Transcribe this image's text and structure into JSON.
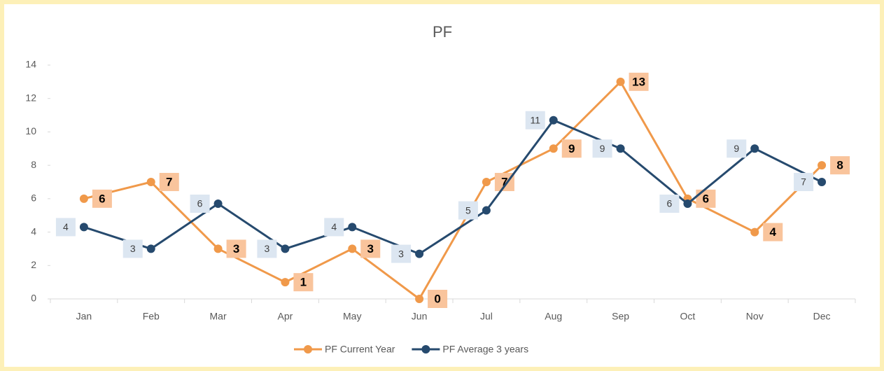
{
  "chart_data": {
    "type": "line",
    "title": "PF",
    "categories": [
      "Jan",
      "Feb",
      "Mar",
      "Apr",
      "May",
      "Jun",
      "Jul",
      "Aug",
      "Sep",
      "Oct",
      "Nov",
      "Dec"
    ],
    "series": [
      {
        "name": "PF Current Year",
        "color": "#f0994a",
        "values": [
          6,
          7,
          3,
          1,
          3,
          0,
          7,
          9,
          13,
          6,
          4,
          8
        ]
      },
      {
        "name": "PF Average 3 years",
        "color": "#264a6e",
        "values": [
          4.3,
          3,
          5.7,
          3,
          4.3,
          2.7,
          5.3,
          10.7,
          9,
          5.7,
          9,
          7
        ],
        "value_labels": [
          "4",
          "3",
          "6",
          "3",
          "4",
          "3",
          "5",
          "11",
          "9",
          "6",
          "9",
          "7"
        ]
      }
    ],
    "ylim": [
      0,
      14
    ],
    "yticks": [
      0,
      2,
      4,
      6,
      8,
      10,
      12,
      14
    ],
    "legend": "bottom"
  }
}
